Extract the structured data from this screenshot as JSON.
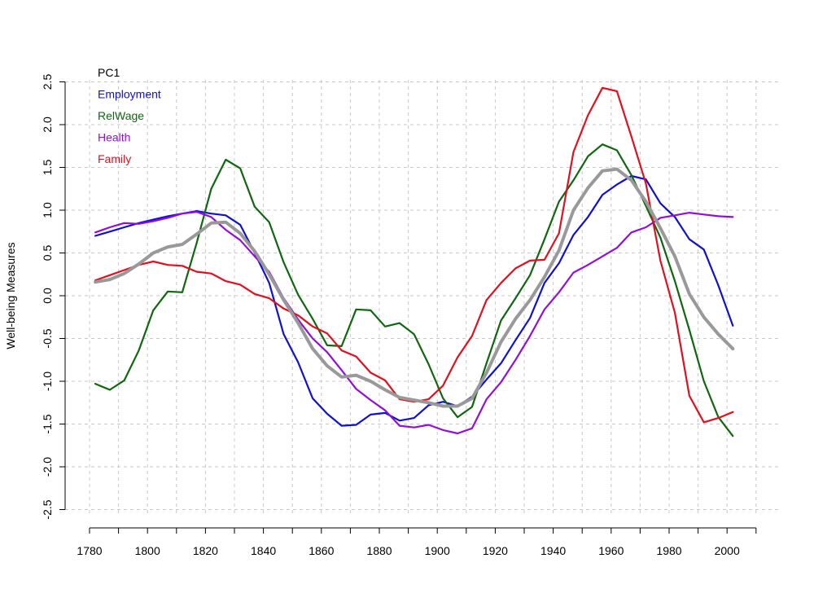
{
  "chart_data": {
    "type": "line",
    "title": "",
    "xlabel": "",
    "ylabel": "Well-being Measures",
    "xlim": [
      1780,
      2010
    ],
    "ylim": [
      -2.5,
      2.5
    ],
    "x_ticks": [
      "1780",
      "1800",
      "1820",
      "1840",
      "1860",
      "1880",
      "1900",
      "1920",
      "1940",
      "1960",
      "1980",
      "2000"
    ],
    "y_ticks": [
      "-2.5",
      "-2.0",
      "-1.5",
      "-1.0",
      "-0.5",
      "0.0",
      "0.5",
      "1.0",
      "1.5",
      "2.0",
      "2.5"
    ],
    "grid": true,
    "legend": {
      "placement": "top-left",
      "order": [
        "PC1",
        "Employment",
        "RelWage",
        "Health",
        "Family"
      ]
    },
    "x": [
      1782,
      1787,
      1792,
      1797,
      1802,
      1807,
      1812,
      1817,
      1822,
      1827,
      1832,
      1837,
      1842,
      1847,
      1852,
      1857,
      1862,
      1867,
      1872,
      1877,
      1882,
      1887,
      1892,
      1897,
      1902,
      1907,
      1912,
      1917,
      1922,
      1927,
      1932,
      1937,
      1942,
      1947,
      1952,
      1957,
      1962,
      1967,
      1972,
      1977,
      1982,
      1987,
      1992,
      1997,
      2002
    ],
    "series": [
      {
        "name": "PC1",
        "color": "#999999",
        "values": [
          0.16,
          0.19,
          0.26,
          0.37,
          0.5,
          0.57,
          0.6,
          0.72,
          0.85,
          0.86,
          0.73,
          0.52,
          0.25,
          -0.05,
          -0.32,
          -0.62,
          -0.82,
          -0.95,
          -0.93,
          -1.0,
          -1.1,
          -1.19,
          -1.22,
          -1.25,
          -1.29,
          -1.29,
          -1.2,
          -0.9,
          -0.54,
          -0.27,
          -0.05,
          0.22,
          0.53,
          1.0,
          1.26,
          1.46,
          1.48,
          1.35,
          1.1,
          0.79,
          0.46,
          0.02,
          -0.25,
          -0.45,
          -0.62
        ]
      },
      {
        "name": "Employment",
        "color": "#1010d0",
        "values": [
          0.7,
          0.75,
          0.8,
          0.85,
          0.89,
          0.93,
          0.96,
          0.99,
          0.96,
          0.94,
          0.83,
          0.5,
          0.15,
          -0.45,
          -0.78,
          -1.2,
          -1.38,
          -1.52,
          -1.51,
          -1.39,
          -1.37,
          -1.46,
          -1.43,
          -1.28,
          -1.24,
          -1.29,
          -1.18,
          -0.98,
          -0.79,
          -0.52,
          -0.26,
          0.15,
          0.38,
          0.71,
          0.92,
          1.18,
          1.3,
          1.4,
          1.36,
          1.08,
          0.92,
          0.66,
          0.54,
          0.12,
          -0.35
        ]
      },
      {
        "name": "RelWage",
        "color": "#116611",
        "values": [
          -1.03,
          -1.1,
          -0.99,
          -0.64,
          -0.17,
          0.05,
          0.04,
          0.62,
          1.25,
          1.59,
          1.49,
          1.04,
          0.86,
          0.39,
          0.01,
          -0.27,
          -0.58,
          -0.59,
          -0.16,
          -0.17,
          -0.36,
          -0.32,
          -0.45,
          -0.8,
          -1.2,
          -1.42,
          -1.3,
          -0.79,
          -0.29,
          -0.03,
          0.24,
          0.66,
          1.1,
          1.35,
          1.63,
          1.77,
          1.7,
          1.41,
          1.05,
          0.68,
          0.17,
          -0.4,
          -1.0,
          -1.42,
          -1.64
        ]
      },
      {
        "name": "Health",
        "color": "#9010d8",
        "values": [
          0.74,
          0.8,
          0.85,
          0.84,
          0.87,
          0.91,
          0.96,
          0.98,
          0.92,
          0.77,
          0.65,
          0.46,
          0.28,
          -0.03,
          -0.28,
          -0.5,
          -0.66,
          -0.87,
          -1.09,
          -1.22,
          -1.34,
          -1.52,
          -1.54,
          -1.51,
          -1.57,
          -1.61,
          -1.55,
          -1.21,
          -1.01,
          -0.75,
          -0.47,
          -0.16,
          0.04,
          0.27,
          0.36,
          0.46,
          0.56,
          0.74,
          0.8,
          0.91,
          0.94,
          0.97,
          0.95,
          0.93,
          0.92
        ]
      },
      {
        "name": "Family",
        "color": "#e01020",
        "values": [
          0.18,
          0.24,
          0.3,
          0.36,
          0.4,
          0.36,
          0.35,
          0.28,
          0.26,
          0.17,
          0.13,
          0.02,
          -0.03,
          -0.15,
          -0.23,
          -0.36,
          -0.44,
          -0.64,
          -0.71,
          -0.9,
          -0.99,
          -1.21,
          -1.24,
          -1.21,
          -1.05,
          -0.72,
          -0.47,
          -0.05,
          0.15,
          0.32,
          0.41,
          0.42,
          0.73,
          1.68,
          2.11,
          2.43,
          2.39,
          1.86,
          1.31,
          0.41,
          -0.2,
          -1.17,
          -1.48,
          -1.43,
          -1.36
        ]
      }
    ]
  }
}
